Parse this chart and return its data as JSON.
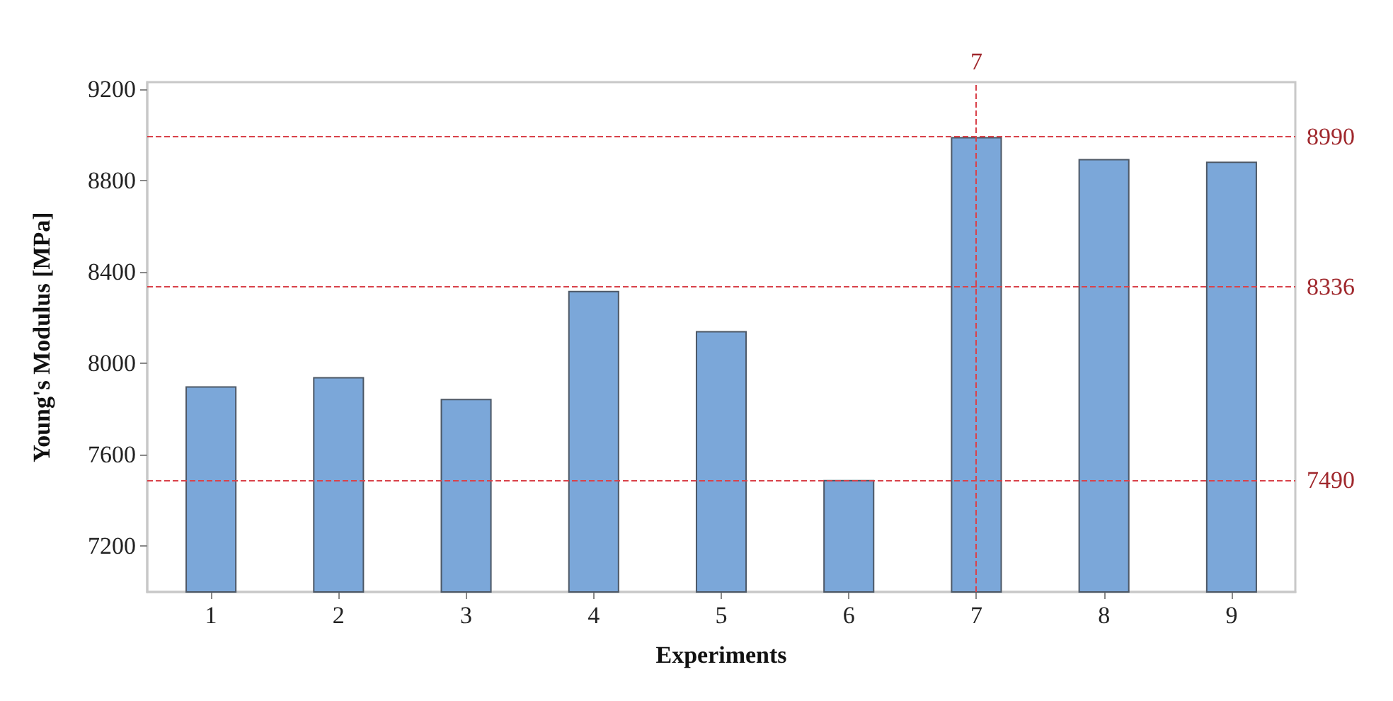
{
  "chart_data": {
    "type": "bar",
    "xlabel": "Experiments",
    "ylabel": "Young's Modulus [MPa]",
    "categories": [
      "1",
      "2",
      "3",
      "4",
      "5",
      "6",
      "7",
      "8",
      "9"
    ],
    "series": [
      {
        "color": "#7ba7d9",
        "values": [
          7900,
          7940,
          7845,
          8317,
          8141,
          7490,
          8990,
          8894,
          8882
        ]
      }
    ],
    "ylim": [
      7000,
      9230
    ],
    "yticks": [
      7200,
      7600,
      8000,
      8400,
      8800,
      9200
    ],
    "grid": false,
    "ref_lines": [
      {
        "axis": "y",
        "value": 8990,
        "label": "8990",
        "color": "#d9424a",
        "line_style": "dashed"
      },
      {
        "axis": "y",
        "value": 8336,
        "label": "8336",
        "color": "#d9424a",
        "line_style": "dashed"
      },
      {
        "axis": "y",
        "value": 7490,
        "label": "7490",
        "color": "#d9424a",
        "line_style": "dashed"
      },
      {
        "axis": "x",
        "value": "7",
        "label": "7",
        "color": "#d9424a",
        "line_style": "dashed"
      }
    ]
  }
}
